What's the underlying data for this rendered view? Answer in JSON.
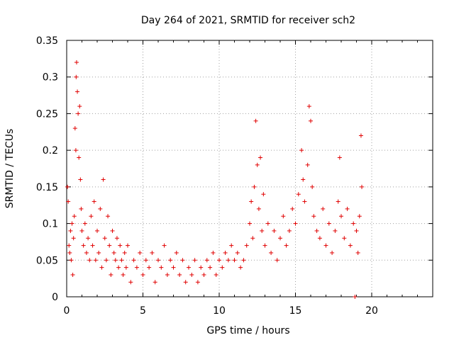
{
  "chart_data": {
    "type": "scatter",
    "title": "Day 264 of 2021, SRMTID for receiver sch2",
    "xlabel": "GPS time / hours",
    "ylabel": "SRMTID / TECUs",
    "xlim": [
      0,
      24
    ],
    "ylim": [
      0,
      0.35
    ],
    "xticks": [
      0,
      5,
      10,
      15,
      20
    ],
    "xtick_labels": [
      "0",
      "5",
      "10",
      "15",
      "20"
    ],
    "yticks": [
      0,
      0.05,
      0.1,
      0.15,
      0.2,
      0.25,
      0.3,
      0.35
    ],
    "ytick_labels": [
      "0",
      "0.05",
      "0.1",
      "0.15",
      "0.2",
      "0.25",
      "0.3",
      "0.35"
    ],
    "grid": true,
    "marker": "+",
    "marker_color": "#e00000",
    "series": [
      {
        "name": "SRMTID",
        "points": [
          [
            0.05,
            0.15
          ],
          [
            0.1,
            0.13
          ],
          [
            0.15,
            0.07
          ],
          [
            0.2,
            0.06
          ],
          [
            0.25,
            0.09
          ],
          [
            0.3,
            0.05
          ],
          [
            0.35,
            0.1
          ],
          [
            0.4,
            0.03
          ],
          [
            0.45,
            0.08
          ],
          [
            0.5,
            0.11
          ],
          [
            0.55,
            0.23
          ],
          [
            0.6,
            0.2
          ],
          [
            0.62,
            0.3
          ],
          [
            0.65,
            0.32
          ],
          [
            0.7,
            0.28
          ],
          [
            0.75,
            0.25
          ],
          [
            0.8,
            0.19
          ],
          [
            0.85,
            0.26
          ],
          [
            0.9,
            0.16
          ],
          [
            0.95,
            0.12
          ],
          [
            1.0,
            0.09
          ],
          [
            1.1,
            0.07
          ],
          [
            1.2,
            0.1
          ],
          [
            1.3,
            0.06
          ],
          [
            1.4,
            0.08
          ],
          [
            1.5,
            0.05
          ],
          [
            1.6,
            0.11
          ],
          [
            1.7,
            0.07
          ],
          [
            1.8,
            0.13
          ],
          [
            1.9,
            0.05
          ],
          [
            2.0,
            0.09
          ],
          [
            2.1,
            0.06
          ],
          [
            2.2,
            0.12
          ],
          [
            2.3,
            0.04
          ],
          [
            2.4,
            0.16
          ],
          [
            2.5,
            0.08
          ],
          [
            2.6,
            0.05
          ],
          [
            2.7,
            0.11
          ],
          [
            2.8,
            0.07
          ],
          [
            2.9,
            0.03
          ],
          [
            3.0,
            0.09
          ],
          [
            3.1,
            0.06
          ],
          [
            3.2,
            0.05
          ],
          [
            3.3,
            0.08
          ],
          [
            3.4,
            0.04
          ],
          [
            3.5,
            0.07
          ],
          [
            3.6,
            0.05
          ],
          [
            3.7,
            0.03
          ],
          [
            3.8,
            0.06
          ],
          [
            3.9,
            0.04
          ],
          [
            4.0,
            0.07
          ],
          [
            4.2,
            0.02
          ],
          [
            4.4,
            0.05
          ],
          [
            4.6,
            0.04
          ],
          [
            4.8,
            0.06
          ],
          [
            5.0,
            0.03
          ],
          [
            5.2,
            0.05
          ],
          [
            5.4,
            0.04
          ],
          [
            5.6,
            0.06
          ],
          [
            5.8,
            0.02
          ],
          [
            6.0,
            0.05
          ],
          [
            6.2,
            0.04
          ],
          [
            6.4,
            0.07
          ],
          [
            6.6,
            0.03
          ],
          [
            6.8,
            0.05
          ],
          [
            7.0,
            0.04
          ],
          [
            7.2,
            0.06
          ],
          [
            7.4,
            0.03
          ],
          [
            7.6,
            0.05
          ],
          [
            7.8,
            0.02
          ],
          [
            8.0,
            0.04
          ],
          [
            8.2,
            0.03
          ],
          [
            8.4,
            0.05
          ],
          [
            8.6,
            0.02
          ],
          [
            8.8,
            0.04
          ],
          [
            9.0,
            0.03
          ],
          [
            9.2,
            0.05
          ],
          [
            9.4,
            0.04
          ],
          [
            9.6,
            0.06
          ],
          [
            9.8,
            0.03
          ],
          [
            10.0,
            0.05
          ],
          [
            10.2,
            0.04
          ],
          [
            10.4,
            0.06
          ],
          [
            10.6,
            0.05
          ],
          [
            10.8,
            0.07
          ],
          [
            11.0,
            0.05
          ],
          [
            11.2,
            0.06
          ],
          [
            11.4,
            0.04
          ],
          [
            11.6,
            0.05
          ],
          [
            11.8,
            0.07
          ],
          [
            12.0,
            0.1
          ],
          [
            12.1,
            0.13
          ],
          [
            12.2,
            0.08
          ],
          [
            12.3,
            0.15
          ],
          [
            12.4,
            0.24
          ],
          [
            12.5,
            0.18
          ],
          [
            12.6,
            0.12
          ],
          [
            12.7,
            0.19
          ],
          [
            12.8,
            0.09
          ],
          [
            12.9,
            0.14
          ],
          [
            13.0,
            0.07
          ],
          [
            13.2,
            0.1
          ],
          [
            13.4,
            0.06
          ],
          [
            13.6,
            0.09
          ],
          [
            13.8,
            0.05
          ],
          [
            14.0,
            0.08
          ],
          [
            14.2,
            0.11
          ],
          [
            14.4,
            0.07
          ],
          [
            14.6,
            0.09
          ],
          [
            14.8,
            0.12
          ],
          [
            15.0,
            0.1
          ],
          [
            15.2,
            0.14
          ],
          [
            15.4,
            0.2
          ],
          [
            15.5,
            0.16
          ],
          [
            15.6,
            0.13
          ],
          [
            15.8,
            0.18
          ],
          [
            15.9,
            0.26
          ],
          [
            16.0,
            0.24
          ],
          [
            16.1,
            0.15
          ],
          [
            16.2,
            0.11
          ],
          [
            16.4,
            0.09
          ],
          [
            16.6,
            0.08
          ],
          [
            16.8,
            0.12
          ],
          [
            17.0,
            0.07
          ],
          [
            17.2,
            0.1
          ],
          [
            17.4,
            0.06
          ],
          [
            17.6,
            0.09
          ],
          [
            17.8,
            0.13
          ],
          [
            17.9,
            0.19
          ],
          [
            18.0,
            0.11
          ],
          [
            18.2,
            0.08
          ],
          [
            18.4,
            0.12
          ],
          [
            18.6,
            0.07
          ],
          [
            18.8,
            0.1
          ],
          [
            18.9,
            0.0
          ],
          [
            19.0,
            0.09
          ],
          [
            19.1,
            0.06
          ],
          [
            19.2,
            0.11
          ],
          [
            19.3,
            0.22
          ],
          [
            19.35,
            0.15
          ]
        ]
      }
    ]
  }
}
